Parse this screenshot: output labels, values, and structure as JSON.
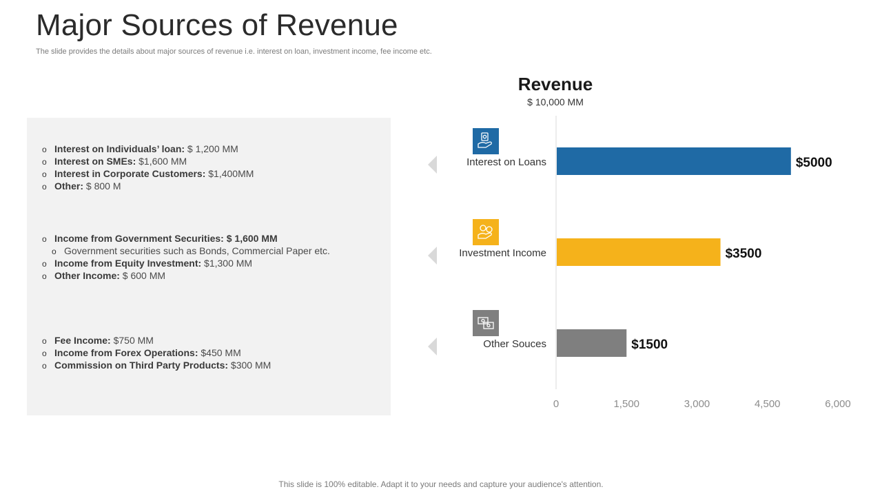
{
  "title": "Major Sources of Revenue",
  "subtitle": "The slide provides the details about major sources of revenue i.e. interest on loan, investment income, fee income etc.",
  "details": [
    {
      "items": [
        {
          "label": "Interest on Individuals’ loan:",
          "value": " $ 1,200 MM"
        },
        {
          "label": "Interest on SMEs:",
          "value": " $1,600 MM"
        },
        {
          "label": "Interest in Corporate Customers:",
          "value": " $1,400MM"
        },
        {
          "label": "Other:",
          "value": " $ 800 M"
        }
      ]
    },
    {
      "items": [
        {
          "label": "Income from Government Securities: $ 1,600 MM",
          "value": ""
        },
        {
          "label": "",
          "value": "Government securities such as Bonds, Commercial Paper etc."
        },
        {
          "label": "Income from Equity Investment:",
          "value": " $1,300 MM"
        },
        {
          "label": "Other Income:",
          "value": " $ 600 MM"
        }
      ]
    },
    {
      "items": [
        {
          "label": "Fee Income:",
          "value": " $750 MM"
        },
        {
          "label": "Income from Forex Operations:",
          "value": " $450 MM"
        },
        {
          "label": "Commission on Third Party Products:",
          "value": " $300 MM"
        }
      ]
    }
  ],
  "footer": "This slide is 100% editable. Adapt it to your needs and capture your audience's attention.",
  "chart_data": {
    "type": "bar",
    "orientation": "horizontal",
    "title": "Revenue",
    "subtitle": "$ 10,000 MM",
    "categories": [
      "Interest on Loans",
      "Investment Income",
      "Other Souces"
    ],
    "values": [
      5000,
      3500,
      1500
    ],
    "data_labels": [
      "$5000",
      "$3500",
      "$1500"
    ],
    "colors": [
      "#1f6aa5",
      "#f5b21b",
      "#7f7f7f"
    ],
    "icons": [
      "money-hand-icon",
      "coins-hand-icon",
      "money-bills-icon"
    ],
    "xlim": [
      0,
      6000
    ],
    "xticks": [
      0,
      1500,
      3000,
      4500,
      6000
    ],
    "xtick_labels": [
      "0",
      "1,500",
      "3,000",
      "4,500",
      "6,000"
    ],
    "grid": false,
    "legend": "none"
  }
}
